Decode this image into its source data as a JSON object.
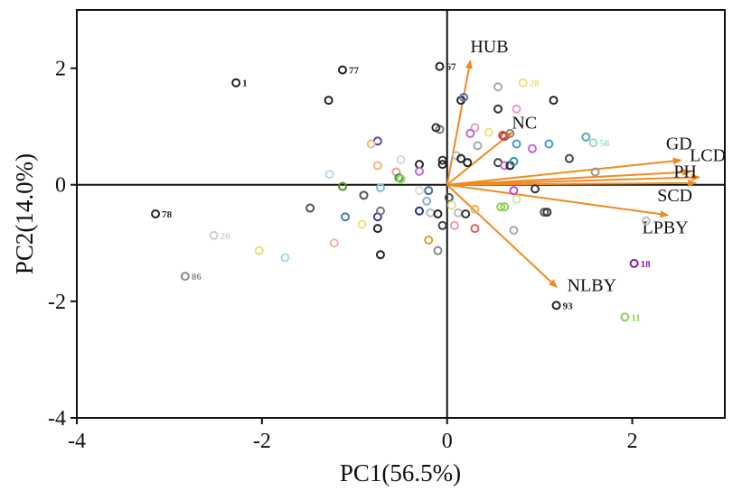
{
  "chart_data": {
    "type": "scatter",
    "title": "",
    "xlabel": "PC1(56.5%)",
    "ylabel": "PC2(14.0%)",
    "xlim": [
      -4,
      3
    ],
    "ylim": [
      -4,
      3
    ],
    "xticks": [
      "-4",
      "-2",
      "0",
      "2"
    ],
    "xtick_values": [
      -4,
      -2,
      0,
      2
    ],
    "yticks": [
      "2",
      "0",
      "-2",
      "-4"
    ],
    "ytick_values": [
      2,
      0,
      -2,
      -4
    ],
    "arrow_color": "#f08a24",
    "loadings": [
      {
        "name": "HUB",
        "x": 0.25,
        "y": 2.12
      },
      {
        "name": "NC",
        "x": 0.7,
        "y": 0.9
      },
      {
        "name": "GD",
        "x": 2.52,
        "y": 0.42
      },
      {
        "name": "LCD",
        "x": 2.62,
        "y": 0.22
      },
      {
        "name": "PH",
        "x": 2.72,
        "y": 0.13
      },
      {
        "name": "SCD",
        "x": 2.68,
        "y": 0.03
      },
      {
        "name": "LPBY",
        "x": 2.38,
        "y": -0.52
      },
      {
        "name": "NLBY",
        "x": 1.18,
        "y": -1.75
      }
    ],
    "labeled_points": [
      {
        "label": "1",
        "x": -2.28,
        "y": 1.75,
        "color": "#222222"
      },
      {
        "label": "77",
        "x": -1.13,
        "y": 1.97,
        "color": "#222222"
      },
      {
        "label": "67",
        "x": -0.08,
        "y": 2.03,
        "color": "#222222"
      },
      {
        "label": "28",
        "x": 0.82,
        "y": 1.75,
        "color": "#e8e47a"
      },
      {
        "label": "56",
        "x": 1.58,
        "y": 0.72,
        "color": "#9fd8d0"
      },
      {
        "label": "78",
        "x": -3.15,
        "y": -0.5,
        "color": "#222222"
      },
      {
        "label": "26",
        "x": -2.52,
        "y": -0.87,
        "color": "#cfcfcf"
      },
      {
        "label": "86",
        "x": -2.83,
        "y": -1.57,
        "color": "#8a8a8a"
      },
      {
        "label": "18",
        "x": 2.02,
        "y": -1.35,
        "color": "#8a1a9b"
      },
      {
        "label": "93",
        "x": 1.18,
        "y": -2.07,
        "color": "#222222"
      },
      {
        "label": "11",
        "x": 1.92,
        "y": -2.27,
        "color": "#8fd14f"
      }
    ],
    "points": [
      {
        "x": -1.28,
        "y": 1.45,
        "color": "#222222"
      },
      {
        "x": -0.75,
        "y": 0.75,
        "color": "#4a4ad0"
      },
      {
        "x": -0.82,
        "y": 0.7,
        "color": "#f7b47c"
      },
      {
        "x": -0.5,
        "y": 0.43,
        "color": "#d8d8d8"
      },
      {
        "x": -0.75,
        "y": 0.33,
        "color": "#f7b47c"
      },
      {
        "x": -0.55,
        "y": 0.22,
        "color": "#e89ab0"
      },
      {
        "x": -0.3,
        "y": 0.35,
        "color": "#222222"
      },
      {
        "x": -0.3,
        "y": 0.23,
        "color": "#c06bd0"
      },
      {
        "x": -0.52,
        "y": 0.12,
        "color": "#3a9a3a"
      },
      {
        "x": -0.5,
        "y": 0.1,
        "color": "#8fd14f"
      },
      {
        "x": -1.27,
        "y": 0.18,
        "color": "#b9d8ef"
      },
      {
        "x": -1.13,
        "y": -0.03,
        "color": "#5a8a2a"
      },
      {
        "x": -0.9,
        "y": -0.18,
        "color": "#555555"
      },
      {
        "x": -0.72,
        "y": -0.05,
        "color": "#80c0c8"
      },
      {
        "x": -1.48,
        "y": -0.4,
        "color": "#555555"
      },
      {
        "x": -1.1,
        "y": -0.55,
        "color": "#4a7ac0"
      },
      {
        "x": -0.92,
        "y": -0.68,
        "color": "#f0e07a"
      },
      {
        "x": -0.75,
        "y": -0.55,
        "color": "#3a3a9a"
      },
      {
        "x": -0.72,
        "y": -0.45,
        "color": "#777777"
      },
      {
        "x": -0.75,
        "y": -0.75,
        "color": "#222222"
      },
      {
        "x": -0.72,
        "y": -1.2,
        "color": "#222222"
      },
      {
        "x": -1.22,
        "y": -1.0,
        "color": "#f7b0b0"
      },
      {
        "x": -2.03,
        "y": -1.13,
        "color": "#e0e07a"
      },
      {
        "x": -1.75,
        "y": -1.25,
        "color": "#a8d8ef"
      },
      {
        "x": -0.3,
        "y": -0.45,
        "color": "#2a2aa0"
      },
      {
        "x": -0.22,
        "y": -0.28,
        "color": "#8fb0d8"
      },
      {
        "x": -0.18,
        "y": -0.48,
        "color": "#bbbbbb"
      },
      {
        "x": -0.3,
        "y": -0.1,
        "color": "#dddddd"
      },
      {
        "x": -0.2,
        "y": -0.95,
        "color": "#e0a020"
      },
      {
        "x": -0.1,
        "y": -1.13,
        "color": "#888888"
      },
      {
        "x": -0.1,
        "y": -0.5,
        "color": "#222222"
      },
      {
        "x": -0.05,
        "y": -0.7,
        "color": "#444444"
      },
      {
        "x": 0.02,
        "y": -0.22,
        "color": "#555555"
      },
      {
        "x": 0.05,
        "y": -0.35,
        "color": "#e0e0a0"
      },
      {
        "x": 0.08,
        "y": -0.7,
        "color": "#e6a0b0"
      },
      {
        "x": -0.2,
        "y": -0.1,
        "color": "#4a6ab0"
      },
      {
        "x": 0.12,
        "y": -0.48,
        "color": "#bbbbbb"
      },
      {
        "x": 0.2,
        "y": -0.5,
        "color": "#333333"
      },
      {
        "x": 0.3,
        "y": -0.42,
        "color": "#f0b060"
      },
      {
        "x": 0.3,
        "y": -0.75,
        "color": "#e06060"
      },
      {
        "x": 0.58,
        "y": -0.38,
        "color": "#8fd14f"
      },
      {
        "x": 0.62,
        "y": -0.38,
        "color": "#8fd14f"
      },
      {
        "x": 0.72,
        "y": -0.78,
        "color": "#aaaaaa"
      },
      {
        "x": 0.75,
        "y": -0.25,
        "color": "#cfe8a0"
      },
      {
        "x": 1.05,
        "y": -0.47,
        "color": "#555555"
      },
      {
        "x": 1.08,
        "y": -0.47,
        "color": "#333333"
      },
      {
        "x": 0.95,
        "y": -0.07,
        "color": "#333333"
      },
      {
        "x": 0.72,
        "y": -0.1,
        "color": "#c04ad0"
      },
      {
        "x": 0.15,
        "y": 1.45,
        "color": "#222222"
      },
      {
        "x": 0.18,
        "y": 1.5,
        "color": "#4a7ad0"
      },
      {
        "x": 0.55,
        "y": 1.68,
        "color": "#aaaaaa"
      },
      {
        "x": 0.55,
        "y": 1.3,
        "color": "#333333"
      },
      {
        "x": 1.15,
        "y": 1.45,
        "color": "#222222"
      },
      {
        "x": 0.75,
        "y": 1.3,
        "color": "#e8a0d0"
      },
      {
        "x": -0.08,
        "y": 0.95,
        "color": "#777777"
      },
      {
        "x": -0.12,
        "y": 0.98,
        "color": "#333333"
      },
      {
        "x": 0.3,
        "y": 0.98,
        "color": "#e6a0c0"
      },
      {
        "x": 0.25,
        "y": 0.88,
        "color": "#c06bd0"
      },
      {
        "x": 0.45,
        "y": 0.9,
        "color": "#f0e07a"
      },
      {
        "x": 0.6,
        "y": 0.85,
        "color": "#e04040"
      },
      {
        "x": 0.62,
        "y": 0.83,
        "color": "#c04040"
      },
      {
        "x": 0.68,
        "y": 0.88,
        "color": "#888888"
      },
      {
        "x": 0.33,
        "y": 0.67,
        "color": "#aaaaaa"
      },
      {
        "x": 0.75,
        "y": 0.7,
        "color": "#4a9ad0"
      },
      {
        "x": 1.1,
        "y": 0.7,
        "color": "#4a9ad0"
      },
      {
        "x": 0.92,
        "y": 0.62,
        "color": "#c06bd0"
      },
      {
        "x": 1.5,
        "y": 0.82,
        "color": "#4ab0b0"
      },
      {
        "x": 1.32,
        "y": 0.45,
        "color": "#444444"
      },
      {
        "x": 1.6,
        "y": 0.22,
        "color": "#999999"
      },
      {
        "x": 0.1,
        "y": 0.5,
        "color": "#bbbbbb"
      },
      {
        "x": 0.15,
        "y": 0.45,
        "color": "#222222"
      },
      {
        "x": 0.22,
        "y": 0.38,
        "color": "#222222"
      },
      {
        "x": -0.05,
        "y": 0.42,
        "color": "#333333"
      },
      {
        "x": -0.05,
        "y": 0.35,
        "color": "#222222"
      },
      {
        "x": 0.55,
        "y": 0.38,
        "color": "#444444"
      },
      {
        "x": 0.62,
        "y": 0.33,
        "color": "#c06bd0"
      },
      {
        "x": 0.68,
        "y": 0.33,
        "color": "#222222"
      },
      {
        "x": 0.72,
        "y": 0.4,
        "color": "#2aa0a0"
      },
      {
        "x": 2.15,
        "y": -0.62,
        "color": "#bbbbbb"
      }
    ]
  }
}
